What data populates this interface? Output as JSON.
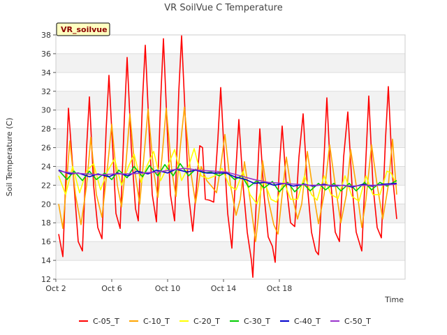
{
  "chart_data": {
    "type": "line",
    "title": "VR SoilVue C Temperature",
    "xlabel": "Time",
    "ylabel": "Soil Temperature (C)",
    "ylim": [
      12,
      38
    ],
    "yticks": [
      12,
      14,
      16,
      18,
      20,
      22,
      24,
      26,
      28,
      30,
      32,
      34,
      36,
      38
    ],
    "xlim": [
      "Oct 2",
      "Oct 20"
    ],
    "xticks": [
      "Oct 2",
      "Oct 6",
      "Oct 10",
      "Oct 14",
      "Oct 18"
    ],
    "grid": true,
    "legend_position": "bottom",
    "annotation": "VR_soilvue",
    "series": [
      {
        "name": "C-05_T",
        "color": "#ff0000",
        "points": [
          [
            0.2,
            16.8
          ],
          [
            0.5,
            14.4
          ],
          [
            0.9,
            30.2
          ],
          [
            1.3,
            22.0
          ],
          [
            1.6,
            16.0
          ],
          [
            1.9,
            15.0
          ],
          [
            2.2,
            26.0
          ],
          [
            2.4,
            31.4
          ],
          [
            2.7,
            22.0
          ],
          [
            3.0,
            17.5
          ],
          [
            3.3,
            16.3
          ],
          [
            3.6,
            28.0
          ],
          [
            3.8,
            33.7
          ],
          [
            4.1,
            25.0
          ],
          [
            4.3,
            19.0
          ],
          [
            4.6,
            17.4
          ],
          [
            4.9,
            29.0
          ],
          [
            5.1,
            35.6
          ],
          [
            5.4,
            26.0
          ],
          [
            5.7,
            19.5
          ],
          [
            5.9,
            18.2
          ],
          [
            6.2,
            31.0
          ],
          [
            6.4,
            36.9
          ],
          [
            6.7,
            27.0
          ],
          [
            6.9,
            21.0
          ],
          [
            7.2,
            18.1
          ],
          [
            7.5,
            31.0
          ],
          [
            7.7,
            37.6
          ],
          [
            8.0,
            27.0
          ],
          [
            8.2,
            21.0
          ],
          [
            8.5,
            18.2
          ],
          [
            8.8,
            32.0
          ],
          [
            9.0,
            37.9
          ],
          [
            9.3,
            28.0
          ],
          [
            9.5,
            21.0
          ],
          [
            9.8,
            17.1
          ],
          [
            10.1,
            22.5
          ],
          [
            10.3,
            26.2
          ],
          [
            10.5,
            26.0
          ],
          [
            10.7,
            20.5
          ],
          [
            11.0,
            20.4
          ],
          [
            11.3,
            20.2
          ],
          [
            11.6,
            27.0
          ],
          [
            11.8,
            32.4
          ],
          [
            12.1,
            24.0
          ],
          [
            12.3,
            19.0
          ],
          [
            12.6,
            15.3
          ],
          [
            12.9,
            24.0
          ],
          [
            13.1,
            29.0
          ],
          [
            13.4,
            22.0
          ],
          [
            13.7,
            17.0
          ],
          [
            14.0,
            14.0
          ],
          [
            14.1,
            12.2
          ],
          [
            14.4,
            22.0
          ],
          [
            14.6,
            28.0
          ],
          [
            14.9,
            21.0
          ],
          [
            15.2,
            16.5
          ],
          [
            15.5,
            15.5
          ],
          [
            15.7,
            13.8
          ],
          [
            16.0,
            24.0
          ],
          [
            16.2,
            28.3
          ],
          [
            16.5,
            22.0
          ],
          [
            16.8,
            18.0
          ],
          [
            17.1,
            17.6
          ],
          [
            17.4,
            25.0
          ],
          [
            17.7,
            29.6
          ],
          [
            18.0,
            22.0
          ],
          [
            18.3,
            17.0
          ],
          [
            18.6,
            15.0
          ],
          [
            18.8,
            14.6
          ],
          [
            19.2,
            25.0
          ],
          [
            19.4,
            31.3
          ],
          [
            19.7,
            22.0
          ],
          [
            20.0,
            17.0
          ],
          [
            20.3,
            16.0
          ],
          [
            20.6,
            25.0
          ],
          [
            20.9,
            29.8
          ],
          [
            21.2,
            22.0
          ],
          [
            21.5,
            17.0
          ],
          [
            21.9,
            15.0
          ],
          [
            22.2,
            25.0
          ],
          [
            22.4,
            31.5
          ],
          [
            22.7,
            22.0
          ],
          [
            23.0,
            17.5
          ],
          [
            23.3,
            16.4
          ],
          [
            23.6,
            27.0
          ],
          [
            23.8,
            32.5
          ],
          [
            24.1,
            23.0
          ],
          [
            24.4,
            18.4
          ]
        ]
      },
      {
        "name": "C-10_T",
        "color": "#ffa500",
        "points": [
          [
            0.2,
            20.0
          ],
          [
            0.5,
            17.4
          ],
          [
            1.0,
            26.7
          ],
          [
            1.4,
            21.0
          ],
          [
            1.8,
            17.8
          ],
          [
            2.2,
            22.0
          ],
          [
            2.5,
            27.1
          ],
          [
            2.9,
            21.0
          ],
          [
            3.3,
            18.6
          ],
          [
            3.7,
            24.0
          ],
          [
            4.0,
            28.5
          ],
          [
            4.4,
            22.0
          ],
          [
            4.7,
            19.7
          ],
          [
            5.0,
            24.0
          ],
          [
            5.3,
            29.6
          ],
          [
            5.7,
            23.0
          ],
          [
            6.0,
            20.0
          ],
          [
            6.3,
            25.0
          ],
          [
            6.6,
            30.1
          ],
          [
            7.0,
            23.5
          ],
          [
            7.3,
            20.7
          ],
          [
            7.6,
            25.0
          ],
          [
            7.9,
            30.2
          ],
          [
            8.3,
            23.5
          ],
          [
            8.6,
            20.8
          ],
          [
            8.9,
            26.0
          ],
          [
            9.2,
            30.3
          ],
          [
            9.6,
            24.0
          ],
          [
            10.0,
            20.1
          ],
          [
            10.4,
            24.0
          ],
          [
            10.8,
            22.5
          ],
          [
            11.2,
            21.8
          ],
          [
            11.5,
            21.2
          ],
          [
            11.8,
            24.0
          ],
          [
            12.1,
            27.4
          ],
          [
            12.5,
            22.0
          ],
          [
            12.9,
            18.8
          ],
          [
            13.2,
            20.5
          ],
          [
            13.5,
            24.5
          ],
          [
            13.9,
            20.5
          ],
          [
            14.3,
            16.0
          ],
          [
            14.6,
            20.0
          ],
          [
            14.8,
            24.6
          ],
          [
            15.2,
            20.5
          ],
          [
            15.6,
            17.8
          ],
          [
            15.9,
            16.8
          ],
          [
            16.2,
            21.0
          ],
          [
            16.5,
            25.0
          ],
          [
            16.9,
            21.0
          ],
          [
            17.3,
            18.4
          ],
          [
            17.6,
            20.0
          ],
          [
            18.0,
            25.6
          ],
          [
            18.4,
            21.5
          ],
          [
            18.8,
            17.9
          ],
          [
            19.2,
            21.0
          ],
          [
            19.6,
            26.3
          ],
          [
            20.0,
            22.0
          ],
          [
            20.4,
            18.0
          ],
          [
            20.8,
            21.0
          ],
          [
            21.1,
            25.8
          ],
          [
            21.5,
            22.0
          ],
          [
            21.9,
            17.5
          ],
          [
            22.2,
            20.5
          ],
          [
            22.6,
            26.3
          ],
          [
            23.0,
            22.0
          ],
          [
            23.4,
            18.4
          ],
          [
            23.8,
            22.0
          ],
          [
            24.1,
            26.9
          ],
          [
            24.4,
            21.0
          ]
        ]
      },
      {
        "name": "C-20_T",
        "color": "#ffff00",
        "points": [
          [
            0.2,
            23.0
          ],
          [
            0.7,
            21.0
          ],
          [
            1.2,
            24.0
          ],
          [
            1.7,
            21.2
          ],
          [
            2.2,
            23.5
          ],
          [
            2.7,
            24.3
          ],
          [
            3.2,
            21.5
          ],
          [
            3.7,
            23.5
          ],
          [
            4.2,
            24.8
          ],
          [
            4.7,
            22.0
          ],
          [
            5.2,
            24.0
          ],
          [
            5.6,
            25.3
          ],
          [
            6.1,
            22.3
          ],
          [
            6.5,
            24.0
          ],
          [
            7.0,
            25.6
          ],
          [
            7.5,
            22.5
          ],
          [
            8.0,
            24.0
          ],
          [
            8.5,
            25.8
          ],
          [
            9.0,
            22.5
          ],
          [
            9.5,
            24.0
          ],
          [
            9.9,
            25.9
          ],
          [
            10.4,
            23.0
          ],
          [
            10.9,
            22.7
          ],
          [
            11.4,
            23.0
          ],
          [
            11.9,
            23.8
          ],
          [
            12.4,
            22.0
          ],
          [
            12.9,
            21.5
          ],
          [
            13.4,
            23.5
          ],
          [
            13.9,
            21.0
          ],
          [
            14.4,
            20.0
          ],
          [
            14.9,
            22.5
          ],
          [
            15.4,
            20.5
          ],
          [
            15.8,
            20.2
          ],
          [
            16.3,
            22.5
          ],
          [
            16.8,
            20.5
          ],
          [
            17.3,
            20.5
          ],
          [
            17.8,
            23.0
          ],
          [
            18.3,
            21.0
          ],
          [
            18.7,
            20.4
          ],
          [
            19.2,
            23.0
          ],
          [
            19.7,
            21.0
          ],
          [
            20.2,
            20.6
          ],
          [
            20.7,
            23.0
          ],
          [
            21.2,
            20.8
          ],
          [
            21.7,
            20.3
          ],
          [
            22.2,
            23.0
          ],
          [
            22.7,
            21.0
          ],
          [
            23.2,
            21.0
          ],
          [
            23.7,
            23.5
          ],
          [
            24.0,
            23.3
          ],
          [
            24.4,
            22.0
          ]
        ]
      },
      {
        "name": "C-30_T",
        "color": "#00cc00",
        "points": [
          [
            0.2,
            23.6
          ],
          [
            0.8,
            22.6
          ],
          [
            1.3,
            23.5
          ],
          [
            1.9,
            22.5
          ],
          [
            2.4,
            23.5
          ],
          [
            2.9,
            22.6
          ],
          [
            3.5,
            23.3
          ],
          [
            4.0,
            22.6
          ],
          [
            4.5,
            23.6
          ],
          [
            5.1,
            22.8
          ],
          [
            5.6,
            24.0
          ],
          [
            6.2,
            22.9
          ],
          [
            6.7,
            24.1
          ],
          [
            7.3,
            23.0
          ],
          [
            7.8,
            24.2
          ],
          [
            8.4,
            23.0
          ],
          [
            8.9,
            24.3
          ],
          [
            9.5,
            23.0
          ],
          [
            10.0,
            23.7
          ],
          [
            10.6,
            23.3
          ],
          [
            11.1,
            23.4
          ],
          [
            11.7,
            23.0
          ],
          [
            12.2,
            23.4
          ],
          [
            12.8,
            22.6
          ],
          [
            13.3,
            23.0
          ],
          [
            13.8,
            21.8
          ],
          [
            14.4,
            22.5
          ],
          [
            14.9,
            21.7
          ],
          [
            15.5,
            22.4
          ],
          [
            16.0,
            21.3
          ],
          [
            16.6,
            22.3
          ],
          [
            17.1,
            21.3
          ],
          [
            17.7,
            22.2
          ],
          [
            18.2,
            21.4
          ],
          [
            18.8,
            22.2
          ],
          [
            19.3,
            21.5
          ],
          [
            19.9,
            22.2
          ],
          [
            20.4,
            21.4
          ],
          [
            21.0,
            22.2
          ],
          [
            21.5,
            21.4
          ],
          [
            22.1,
            22.3
          ],
          [
            22.6,
            21.5
          ],
          [
            23.2,
            22.3
          ],
          [
            23.7,
            21.9
          ],
          [
            24.4,
            22.5
          ]
        ]
      },
      {
        "name": "C-40_T",
        "color": "#0000cc",
        "points": [
          [
            0.2,
            23.6
          ],
          [
            1.0,
            23.2
          ],
          [
            1.6,
            23.3
          ],
          [
            2.4,
            22.9
          ],
          [
            3.0,
            23.2
          ],
          [
            3.8,
            22.9
          ],
          [
            4.4,
            23.3
          ],
          [
            5.2,
            23.0
          ],
          [
            5.8,
            23.5
          ],
          [
            6.6,
            23.2
          ],
          [
            7.2,
            23.6
          ],
          [
            8.0,
            23.3
          ],
          [
            8.6,
            23.7
          ],
          [
            9.4,
            23.4
          ],
          [
            10.0,
            23.6
          ],
          [
            10.8,
            23.3
          ],
          [
            11.4,
            23.3
          ],
          [
            12.2,
            23.3
          ],
          [
            12.8,
            22.9
          ],
          [
            13.6,
            22.6
          ],
          [
            14.2,
            22.2
          ],
          [
            15.0,
            22.3
          ],
          [
            15.6,
            22.0
          ],
          [
            16.4,
            22.2
          ],
          [
            17.0,
            21.9
          ],
          [
            17.8,
            22.1
          ],
          [
            18.4,
            21.9
          ],
          [
            19.2,
            22.1
          ],
          [
            19.8,
            21.9
          ],
          [
            20.6,
            22.0
          ],
          [
            21.2,
            21.8
          ],
          [
            22.0,
            22.1
          ],
          [
            22.6,
            21.9
          ],
          [
            23.4,
            22.1
          ],
          [
            24.4,
            22.2
          ]
        ]
      },
      {
        "name": "C-50_T",
        "color": "#9933cc",
        "points": [
          [
            0.2,
            23.5
          ],
          [
            1.2,
            23.3
          ],
          [
            2.2,
            23.2
          ],
          [
            3.2,
            23.1
          ],
          [
            4.2,
            23.2
          ],
          [
            5.2,
            23.2
          ],
          [
            6.2,
            23.3
          ],
          [
            7.2,
            23.4
          ],
          [
            8.2,
            23.6
          ],
          [
            9.2,
            23.8
          ],
          [
            10.2,
            23.6
          ],
          [
            11.2,
            23.5
          ],
          [
            12.2,
            23.4
          ],
          [
            13.2,
            23.0
          ],
          [
            14.2,
            22.6
          ],
          [
            15.2,
            22.3
          ],
          [
            16.2,
            22.2
          ],
          [
            17.2,
            22.1
          ],
          [
            18.2,
            22.0
          ],
          [
            19.2,
            22.0
          ],
          [
            20.2,
            22.0
          ],
          [
            21.2,
            21.9
          ],
          [
            22.2,
            22.0
          ],
          [
            23.2,
            22.0
          ],
          [
            24.4,
            22.1
          ]
        ]
      }
    ]
  }
}
